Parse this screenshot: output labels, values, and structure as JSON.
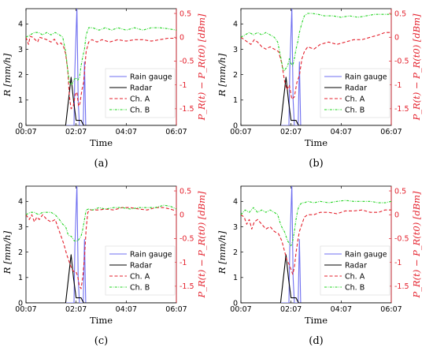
{
  "colors": {
    "rain_gauge": "#6f6ff0",
    "radar": "#000000",
    "ch_a": "#e4202c",
    "ch_b": "#22d422",
    "axis_left": "#000000",
    "axis_right": "#e4202c"
  },
  "chart_data": [
    {
      "type": "line",
      "panel_label": "(a)",
      "xlabel": "Time",
      "ylabel": "R [mm/h]",
      "y2label": "P_R(t) − P_R(t0) [dBm]",
      "x_ticks": [
        "00:07",
        "02:07",
        "04:07",
        "06:07"
      ],
      "xlim": [
        0,
        360
      ],
      "ylim": [
        0,
        4.6
      ],
      "y2lim": [
        -1.85,
        0.6
      ],
      "y_ticks": [
        "0",
        "1",
        "2",
        "3",
        "4"
      ],
      "y2_ticks": [
        "0.5",
        "0",
        "-0.5",
        "-1",
        "-1.5"
      ],
      "legend": [
        "Rain gauge",
        "Radar",
        "Ch. A",
        "Ch. B"
      ],
      "series": [
        {
          "name": "Rain gauge",
          "axis": "left",
          "x": [
            0,
            115,
            117,
            122,
            125,
            128,
            131,
            137,
            140,
            143,
            148,
            360
          ],
          "y": [
            0,
            0,
            2.2,
            4.65,
            1.0,
            0.0,
            0.0,
            0.0,
            2.5,
            0.0,
            0,
            0
          ]
        },
        {
          "name": "Radar",
          "axis": "left",
          "x": [
            0,
            95,
            108,
            114,
            120,
            126,
            132,
            138,
            360
          ],
          "y": [
            0,
            0,
            1.9,
            0.95,
            0.2,
            0.2,
            0.2,
            0,
            0
          ]
        },
        {
          "name": "Ch. A",
          "axis": "right",
          "x": [
            0,
            6,
            10,
            16,
            22,
            28,
            32,
            40,
            50,
            60,
            68,
            76,
            84,
            90,
            95,
            100,
            104,
            108,
            113,
            118,
            122,
            126,
            129,
            134,
            138,
            144,
            150,
            158,
            170,
            182,
            200,
            220,
            240,
            260,
            280,
            300,
            320,
            340,
            352,
            360
          ],
          "y": [
            0.0,
            -0.15,
            0.02,
            0.0,
            -0.05,
            -0.1,
            0.0,
            -0.02,
            -0.05,
            -0.1,
            -0.04,
            -0.15,
            -0.12,
            -0.2,
            -0.35,
            -0.7,
            -1.25,
            -1.5,
            -1.45,
            -1.2,
            -1.15,
            -1.45,
            -1.4,
            -1.1,
            -0.95,
            -0.3,
            -0.1,
            -0.05,
            -0.1,
            -0.05,
            -0.1,
            -0.05,
            -0.08,
            -0.05,
            -0.05,
            -0.08,
            -0.05,
            -0.02,
            -0.02,
            -0.02
          ]
        },
        {
          "name": "Ch. B",
          "axis": "right",
          "x": [
            0,
            10,
            20,
            30,
            40,
            50,
            60,
            70,
            80,
            88,
            95,
            100,
            104,
            108,
            112,
            116,
            120,
            124,
            128,
            132,
            136,
            140,
            144,
            150,
            160,
            175,
            190,
            205,
            220,
            240,
            260,
            280,
            300,
            320,
            340,
            360
          ],
          "y": [
            0.0,
            0.05,
            0.1,
            0.1,
            0.05,
            0.1,
            0.05,
            0.1,
            0.05,
            0.0,
            -0.3,
            -0.7,
            -0.95,
            -1.0,
            -0.95,
            -0.88,
            -0.85,
            -0.9,
            -0.85,
            -0.6,
            -0.4,
            -0.25,
            0.05,
            0.2,
            0.2,
            0.15,
            0.2,
            0.15,
            0.2,
            0.15,
            0.2,
            0.15,
            0.2,
            0.2,
            0.18,
            0.15
          ]
        }
      ]
    },
    {
      "type": "line",
      "panel_label": "(b)",
      "xlabel": "Time",
      "ylabel": "R [mm/h]",
      "y2label": "P_R(t) − P_R(t0) [dBm]",
      "x_ticks": [
        "00:07",
        "02:07",
        "04:07",
        "06:07"
      ],
      "xlim": [
        0,
        360
      ],
      "ylim": [
        0,
        4.6
      ],
      "y2lim": [
        -1.85,
        0.6
      ],
      "y_ticks": [
        "0",
        "1",
        "2",
        "3",
        "4"
      ],
      "y2_ticks": [
        "0.5",
        "0",
        "-0.5",
        "-1",
        "-1.5"
      ],
      "legend": [
        "Rain gauge",
        "Radar",
        "Ch. A",
        "Ch. B"
      ],
      "series": [
        {
          "name": "Rain gauge",
          "axis": "left",
          "x": [
            0,
            115,
            117,
            122,
            125,
            128,
            131,
            137,
            140,
            143,
            148,
            360
          ],
          "y": [
            0,
            0,
            2.2,
            4.65,
            1.0,
            0.0,
            0.0,
            0.0,
            2.5,
            0.0,
            0,
            0
          ]
        },
        {
          "name": "Radar",
          "axis": "left",
          "x": [
            0,
            95,
            108,
            114,
            120,
            126,
            132,
            138,
            360
          ],
          "y": [
            0,
            0,
            1.9,
            0.95,
            0.2,
            0.2,
            0.2,
            0,
            0
          ]
        },
        {
          "name": "Ch. A",
          "axis": "right",
          "x": [
            0,
            8,
            16,
            24,
            32,
            40,
            50,
            60,
            70,
            80,
            90,
            98,
            104,
            110,
            116,
            122,
            128,
            134,
            140,
            146,
            152,
            160,
            175,
            190,
            210,
            230,
            250,
            270,
            290,
            310,
            330,
            345,
            360
          ],
          "y": [
            0.0,
            -0.05,
            -0.1,
            -0.15,
            -0.05,
            -0.1,
            -0.2,
            -0.25,
            -0.2,
            -0.25,
            -0.3,
            -0.55,
            -0.9,
            -1.1,
            -1.0,
            -1.3,
            -1.25,
            -0.95,
            -0.8,
            -0.45,
            -0.3,
            -0.2,
            -0.25,
            -0.15,
            -0.1,
            -0.15,
            -0.1,
            -0.05,
            -0.05,
            0.0,
            0.05,
            0.1,
            0.1
          ]
        },
        {
          "name": "Ch. B",
          "axis": "right",
          "x": [
            0,
            10,
            20,
            30,
            40,
            50,
            60,
            70,
            80,
            88,
            95,
            100,
            104,
            108,
            112,
            116,
            120,
            124,
            128,
            132,
            136,
            140,
            146,
            152,
            160,
            170,
            185,
            200,
            220,
            240,
            260,
            280,
            300,
            320,
            340,
            360
          ],
          "y": [
            0.0,
            0.05,
            0.1,
            0.05,
            0.1,
            0.05,
            0.1,
            0.05,
            0.0,
            -0.1,
            -0.4,
            -0.65,
            -0.7,
            -0.65,
            -0.6,
            -0.45,
            -0.55,
            -0.6,
            -0.45,
            -0.25,
            -0.1,
            0.1,
            0.3,
            0.45,
            0.5,
            0.5,
            0.48,
            0.45,
            0.45,
            0.42,
            0.45,
            0.42,
            0.45,
            0.48,
            0.48,
            0.48
          ]
        }
      ]
    },
    {
      "type": "line",
      "panel_label": "(c)",
      "xlabel": "Time",
      "ylabel": "R [mm/h]",
      "y2label": "P_R(t) − P_R(t0) [dBm]",
      "x_ticks": [
        "00:07",
        "02:07",
        "04:07",
        "06:07"
      ],
      "xlim": [
        0,
        360
      ],
      "ylim": [
        0,
        4.6
      ],
      "y2lim": [
        -1.85,
        0.6
      ],
      "y_ticks": [
        "0",
        "1",
        "2",
        "3",
        "4"
      ],
      "y2_ticks": [
        "0.5",
        "0",
        "-0.5",
        "-1",
        "-1.5"
      ],
      "legend": [
        "Rain gauge",
        "Radar",
        "Ch. A",
        "Ch. B"
      ],
      "series": [
        {
          "name": "Rain gauge",
          "axis": "left",
          "x": [
            0,
            115,
            117,
            122,
            125,
            128,
            131,
            137,
            140,
            143,
            148,
            360
          ],
          "y": [
            0,
            0,
            2.2,
            4.65,
            1.0,
            0.0,
            0.0,
            0.0,
            2.5,
            0.0,
            0,
            0
          ]
        },
        {
          "name": "Radar",
          "axis": "left",
          "x": [
            0,
            95,
            108,
            114,
            120,
            126,
            132,
            138,
            360
          ],
          "y": [
            0,
            0,
            1.9,
            0.95,
            0.2,
            0.2,
            0.2,
            0,
            0
          ]
        },
        {
          "name": "Ch. A",
          "axis": "right",
          "x": [
            0,
            8,
            14,
            20,
            26,
            32,
            40,
            50,
            60,
            70,
            80,
            90,
            98,
            104,
            110,
            116,
            120,
            124,
            128,
            132,
            136,
            140,
            144,
            148,
            154,
            160,
            175,
            190,
            210,
            230,
            250,
            270,
            290,
            310,
            330,
            345,
            360
          ],
          "y": [
            0.0,
            -0.1,
            0.0,
            -0.15,
            -0.05,
            -0.1,
            0.0,
            -0.1,
            -0.15,
            -0.1,
            -0.35,
            -0.6,
            -0.85,
            -1.0,
            -1.15,
            -1.2,
            -1.2,
            -1.3,
            -1.5,
            -1.55,
            -1.3,
            -0.9,
            -0.3,
            0.05,
            0.1,
            0.1,
            0.1,
            0.12,
            0.1,
            0.15,
            0.15,
            0.12,
            0.1,
            0.15,
            0.15,
            0.12,
            0.08
          ]
        },
        {
          "name": "Ch. B",
          "axis": "right",
          "x": [
            0,
            10,
            20,
            30,
            40,
            50,
            60,
            70,
            80,
            88,
            95,
            100,
            104,
            108,
            112,
            116,
            120,
            124,
            128,
            132,
            136,
            140,
            144,
            150,
            160,
            175,
            190,
            210,
            230,
            250,
            270,
            290,
            310,
            330,
            345,
            360
          ],
          "y": [
            0.0,
            0.05,
            0.05,
            0.0,
            0.05,
            0.05,
            0.05,
            0.0,
            -0.1,
            -0.2,
            -0.25,
            -0.4,
            -0.45,
            -0.45,
            -0.5,
            -0.55,
            -0.55,
            -0.55,
            -0.5,
            -0.45,
            -0.3,
            -0.1,
            0.1,
            0.12,
            0.1,
            0.15,
            0.12,
            0.15,
            0.15,
            0.12,
            0.15,
            0.15,
            0.15,
            0.2,
            0.18,
            0.12
          ]
        }
      ]
    },
    {
      "type": "line",
      "panel_label": "(d)",
      "xlabel": "Time",
      "ylabel": "R [mm/h]",
      "y2label": "P_R(t) − P_R(t0) [dBm]",
      "x_ticks": [
        "00:07",
        "02:07",
        "04:07",
        "06:07"
      ],
      "xlim": [
        0,
        360
      ],
      "ylim": [
        0,
        4.6
      ],
      "y2lim": [
        -1.85,
        0.6
      ],
      "y_ticks": [
        "0",
        "1",
        "2",
        "3",
        "4"
      ],
      "y2_ticks": [
        "0.5",
        "0",
        "-0.5",
        "-1",
        "-1.5"
      ],
      "legend": [
        "Rain gauge",
        "Radar",
        "Ch. A",
        "Ch. B"
      ],
      "series": [
        {
          "name": "Rain gauge",
          "axis": "left",
          "x": [
            0,
            115,
            117,
            122,
            125,
            128,
            131,
            137,
            140,
            143,
            148,
            360
          ],
          "y": [
            0,
            0,
            2.2,
            4.65,
            1.0,
            0.0,
            0.0,
            0.0,
            2.5,
            0.0,
            0,
            0
          ]
        },
        {
          "name": "Radar",
          "axis": "left",
          "x": [
            0,
            95,
            108,
            114,
            120,
            126,
            132,
            138,
            360
          ],
          "y": [
            0,
            0,
            1.9,
            0.95,
            0.2,
            0.2,
            0.2,
            0,
            0
          ]
        },
        {
          "name": "Ch. A",
          "axis": "right",
          "x": [
            0,
            8,
            14,
            20,
            26,
            32,
            40,
            50,
            60,
            70,
            80,
            90,
            98,
            104,
            110,
            116,
            120,
            124,
            128,
            132,
            136,
            140,
            146,
            152,
            160,
            175,
            190,
            210,
            230,
            250,
            270,
            290,
            310,
            330,
            345,
            360
          ],
          "y": [
            0.0,
            -0.05,
            -0.2,
            -0.1,
            -0.3,
            -0.15,
            -0.1,
            -0.2,
            -0.3,
            -0.25,
            -0.35,
            -0.4,
            -0.55,
            -0.75,
            -0.95,
            -1.05,
            -1.15,
            -1.25,
            -1.1,
            -0.8,
            -0.55,
            -0.35,
            -0.2,
            -0.05,
            0.0,
            0.0,
            0.05,
            0.05,
            0.02,
            0.08,
            0.08,
            0.1,
            0.05,
            0.05,
            0.1,
            0.1
          ]
        },
        {
          "name": "Ch. B",
          "axis": "right",
          "x": [
            0,
            10,
            20,
            30,
            40,
            50,
            60,
            70,
            80,
            88,
            95,
            100,
            104,
            108,
            112,
            116,
            120,
            124,
            128,
            132,
            136,
            140,
            146,
            152,
            160,
            175,
            190,
            210,
            230,
            250,
            270,
            290,
            310,
            330,
            345,
            360
          ],
          "y": [
            0.0,
            0.1,
            0.05,
            0.15,
            0.05,
            0.1,
            0.05,
            0.1,
            0.05,
            0.0,
            -0.2,
            -0.3,
            -0.35,
            -0.45,
            -0.55,
            -0.6,
            -0.65,
            -0.55,
            -0.35,
            -0.1,
            0.1,
            0.2,
            0.25,
            0.25,
            0.28,
            0.25,
            0.28,
            0.25,
            0.28,
            0.3,
            0.28,
            0.28,
            0.28,
            0.25,
            0.25,
            0.28
          ]
        }
      ]
    }
  ]
}
